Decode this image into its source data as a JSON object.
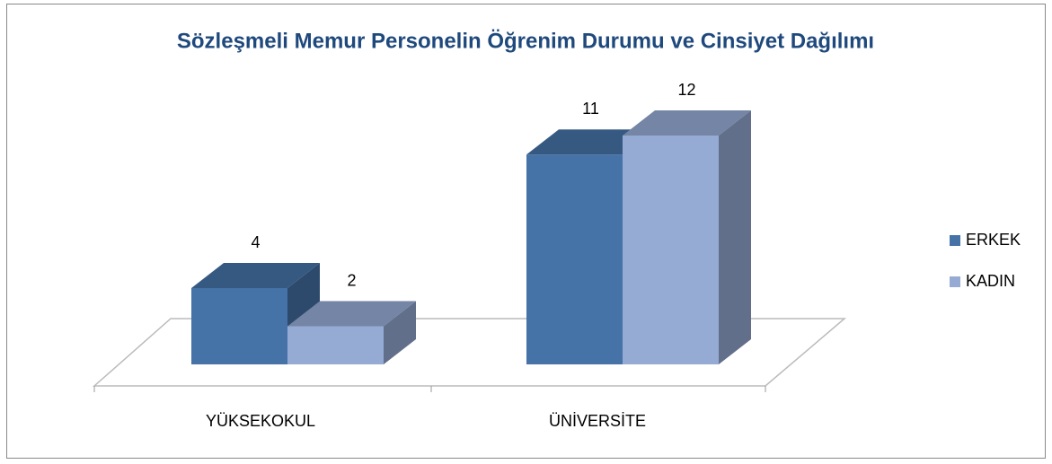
{
  "chart_data": {
    "type": "bar3d",
    "title": "Sözleşmeli Memur Personelin Öğrenim Durumu ve Cinsiyet Dağılımı",
    "categories": [
      "YÜKSEKOKUL",
      "ÜNİVERSİTE"
    ],
    "series": [
      {
        "name": "ERKEK",
        "color": "#4572a7",
        "values": [
          4,
          11
        ]
      },
      {
        "name": "KADIN",
        "color": "#95abd4",
        "values": [
          2,
          12
        ]
      }
    ],
    "legend": "right"
  }
}
